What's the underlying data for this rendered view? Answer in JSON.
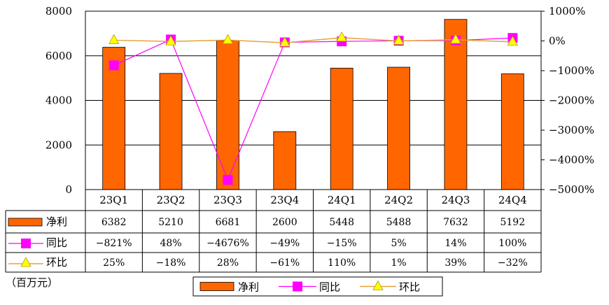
{
  "chart_data": {
    "type": "bar",
    "categories": [
      "23Q1",
      "23Q2",
      "23Q3",
      "23Q4",
      "24Q1",
      "24Q2",
      "24Q3",
      "24Q4"
    ],
    "unit": "（百万元）",
    "left_axis": {
      "ylim": [
        0,
        8000
      ],
      "ticks": [
        "0",
        "2000",
        "4000",
        "6000",
        "8000"
      ]
    },
    "right_axis": {
      "ylim": [
        -5000,
        1000
      ],
      "ticks": [
        "1000%",
        "0%",
        "−1000%",
        "−2000%",
        "−3000%",
        "−4000%",
        "−5000%"
      ]
    },
    "series": [
      {
        "name": "净利",
        "type": "bar",
        "axis": "left",
        "color": "#ff6600",
        "values": [
          6382,
          5210,
          6681,
          2600,
          5448,
          5488,
          7632,
          5192
        ],
        "labels": [
          "6382",
          "5210",
          "6681",
          "2600",
          "5448",
          "5488",
          "7632",
          "5192"
        ]
      },
      {
        "name": "同比",
        "type": "line",
        "axis": "right",
        "color": "#ff00ff",
        "marker": "square",
        "values": [
          -821,
          48,
          -4676,
          -49,
          -15,
          5,
          14,
          100
        ],
        "labels": [
          "−821%",
          "48%",
          "−4676%",
          "−49%",
          "−15%",
          "5%",
          "14%",
          "100%"
        ]
      },
      {
        "name": "环比",
        "type": "line",
        "axis": "right",
        "color": "#ffff00",
        "line_color": "#e6a23c",
        "marker": "triangle",
        "values": [
          25,
          -18,
          28,
          -61,
          110,
          1,
          39,
          -32
        ],
        "labels": [
          "25%",
          "−18%",
          "28%",
          "−61%",
          "110%",
          "1%",
          "39%",
          "−32%"
        ]
      }
    ],
    "legend": {
      "position": "bottom",
      "items": [
        "净利",
        "同比",
        "环比"
      ]
    }
  }
}
